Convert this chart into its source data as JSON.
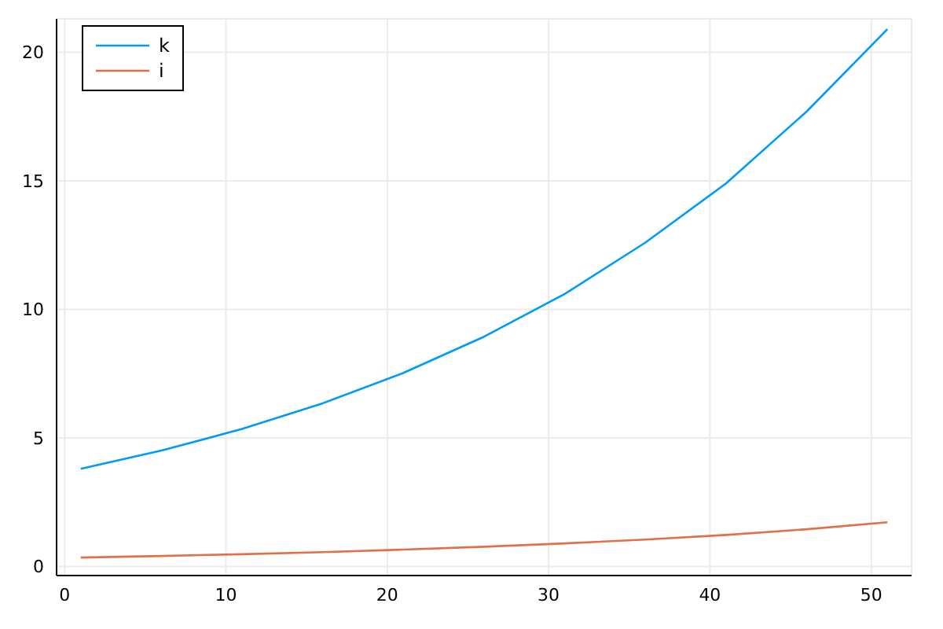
{
  "chart_data": {
    "type": "line",
    "x": [
      1,
      6,
      11,
      16,
      21,
      26,
      31,
      36,
      41,
      46,
      51
    ],
    "series": [
      {
        "name": "k",
        "color": "#009afa",
        "values": [
          3.8,
          4.51,
          5.35,
          6.35,
          7.53,
          8.94,
          10.6,
          12.6,
          14.9,
          17.7,
          20.9
        ]
      },
      {
        "name": "i",
        "color": "#e26f46",
        "values": [
          0.35,
          0.41,
          0.48,
          0.56,
          0.66,
          0.77,
          0.9,
          1.05,
          1.23,
          1.45,
          1.72
        ]
      }
    ],
    "xlim": [
      -0.5,
      52.5
    ],
    "xticks": [
      0,
      10,
      20,
      30,
      40,
      50
    ],
    "ylim": [
      -0.35,
      21.3
    ],
    "yticks": [
      0,
      5,
      10,
      15,
      20
    ],
    "grid": true,
    "legend": "top left"
  }
}
